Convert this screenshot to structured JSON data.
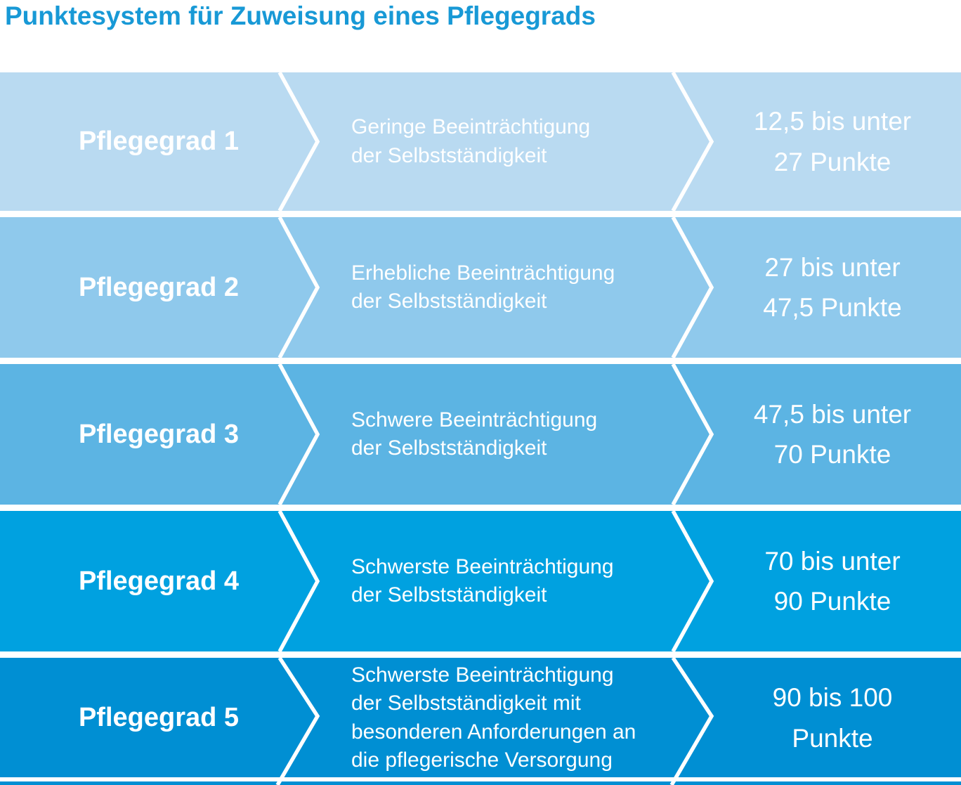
{
  "title": "Punktesystem für Zuweisung eines Pflegegrads",
  "colors": {
    "title_text": "#1899D6",
    "label_text": "#FFFFFF",
    "divider": "#FFFFFF",
    "row_fills": [
      "#B9DAF1",
      "#8FC9EC",
      "#5CB4E3",
      "#00A1E0",
      "#008FD3"
    ]
  },
  "rows": [
    {
      "grade": "Pflegegrad 1",
      "description_lines": [
        "Geringe Beeinträchtigung",
        "der Selbstständigkeit"
      ],
      "points_lines": [
        "12,5 bis unter",
        "27 Punkte"
      ]
    },
    {
      "grade": "Pflegegrad 2",
      "description_lines": [
        "Erhebliche Beeinträchtigung",
        "der Selbstständigkeit"
      ],
      "points_lines": [
        "27 bis unter",
        "47,5 Punkte"
      ]
    },
    {
      "grade": "Pflegegrad 3",
      "description_lines": [
        "Schwere Beeinträchtigung",
        "der Selbstständigkeit"
      ],
      "points_lines": [
        "47,5 bis unter",
        "70 Punkte"
      ]
    },
    {
      "grade": "Pflegegrad 4",
      "description_lines": [
        "Schwerste Beeinträchtigung",
        "der Selbstständigkeit"
      ],
      "points_lines": [
        "70 bis unter",
        "90 Punkte"
      ]
    },
    {
      "grade": "Pflegegrad 5",
      "description_lines": [
        "Schwerste Beeinträchtigung",
        "der Selbstständigkeit mit",
        "besonderen Anforderungen an",
        "die pflegerische Versorgung"
      ],
      "points_lines": [
        "90 bis 100",
        "Punkte"
      ]
    }
  ]
}
